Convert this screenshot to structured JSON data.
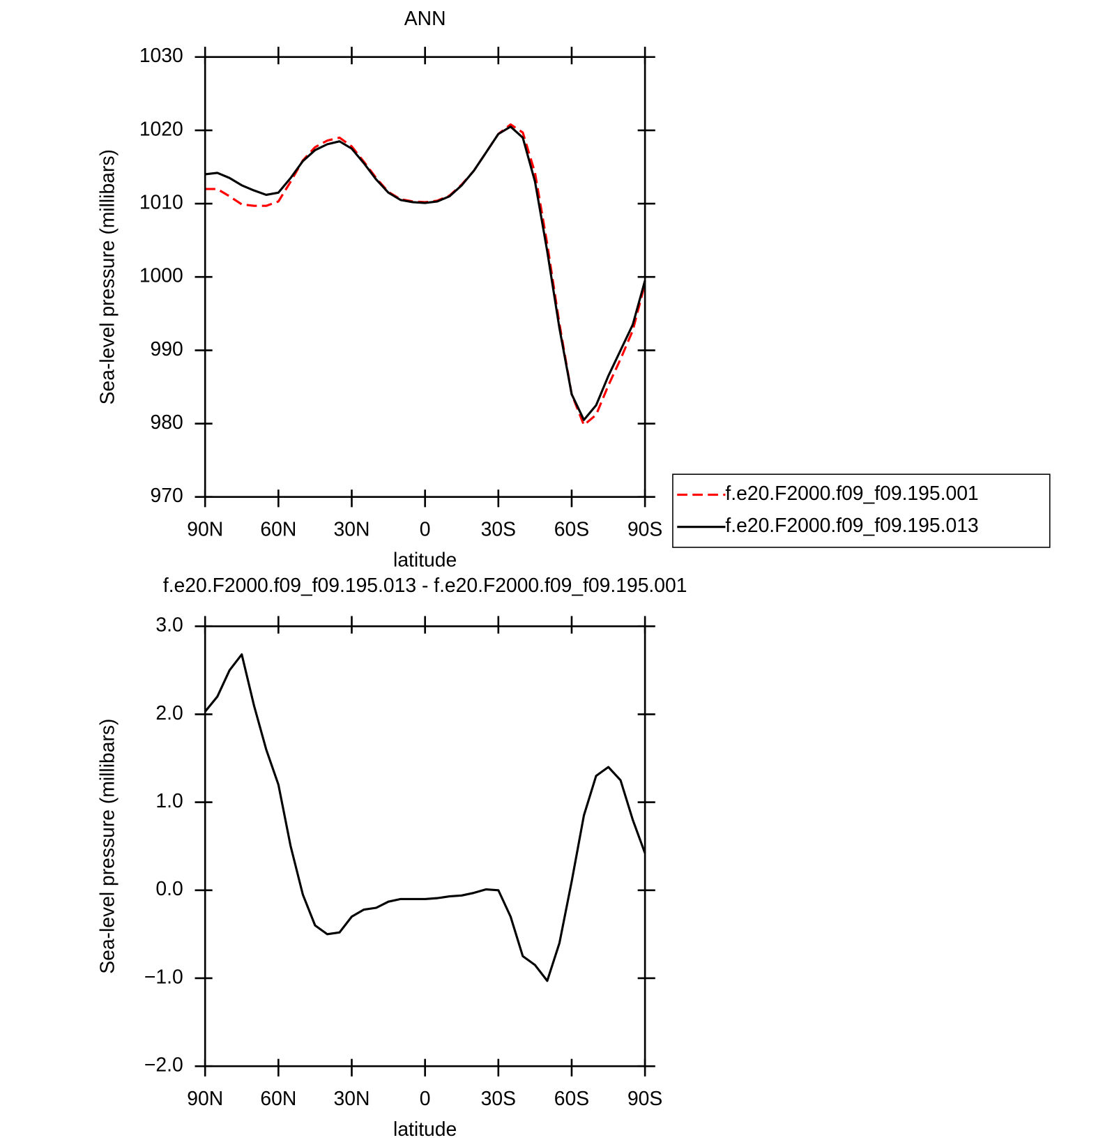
{
  "chart_data": [
    {
      "type": "line",
      "title": "ANN",
      "xlabel": "latitude",
      "ylabel": "Sea-level pressure (millibars)",
      "x": [
        90,
        85,
        80,
        75,
        70,
        65,
        60,
        55,
        50,
        45,
        40,
        35,
        30,
        25,
        20,
        15,
        10,
        5,
        0,
        -5,
        -10,
        -15,
        -20,
        -25,
        -30,
        -35,
        -40,
        -45,
        -50,
        -55,
        -60,
        -65,
        -70,
        -75,
        -80,
        -85,
        -90
      ],
      "xlim": [
        90,
        -90
      ],
      "xticks": [
        {
          "value": 90,
          "label": "90N"
        },
        {
          "value": 60,
          "label": "60N"
        },
        {
          "value": 30,
          "label": "30N"
        },
        0,
        {
          "value": -30,
          "label": "30S"
        },
        {
          "value": -60,
          "label": "60S"
        },
        {
          "value": -90,
          "label": "90S"
        }
      ],
      "ylim": [
        970,
        1030
      ],
      "yticks": [
        970,
        980,
        990,
        1000,
        1010,
        1020,
        1030
      ],
      "legend": "right",
      "series": [
        {
          "name": "f.e20.F2000.f09_f09.195.001",
          "color": "#ff0000",
          "dash": true,
          "values": [
            1012.0,
            1012.0,
            1011.0,
            1009.9,
            1009.7,
            1009.7,
            1010.3,
            1013.0,
            1015.9,
            1017.7,
            1018.6,
            1019.0,
            1017.8,
            1015.7,
            1013.5,
            1011.6,
            1010.6,
            1010.3,
            1010.2,
            1010.4,
            1011.1,
            1012.6,
            1014.5,
            1017.0,
            1019.5,
            1020.8,
            1019.7,
            1014.2,
            1004.5,
            993.6,
            984.0,
            979.8,
            981.2,
            985.2,
            988.8,
            992.7,
            999.1
          ]
        },
        {
          "name": "f.e20.F2000.f09_f09.195.013",
          "color": "#000000",
          "dash": false,
          "values": [
            1014.0,
            1014.2,
            1013.5,
            1012.5,
            1011.8,
            1011.2,
            1011.5,
            1013.5,
            1015.8,
            1017.3,
            1018.1,
            1018.5,
            1017.5,
            1015.5,
            1013.3,
            1011.5,
            1010.5,
            1010.2,
            1010.1,
            1010.3,
            1011.0,
            1012.5,
            1014.5,
            1017.0,
            1019.5,
            1020.5,
            1019.0,
            1013.0,
            1003.5,
            993.0,
            984.0,
            980.5,
            982.5,
            986.5,
            990.0,
            993.5,
            999.5
          ]
        }
      ]
    },
    {
      "type": "line",
      "title": "f.e20.F2000.f09_f09.195.013 - f.e20.F2000.f09_f09.195.001",
      "xlabel": "latitude",
      "ylabel": "Sea-level pressure (millibars)",
      "x": [
        90,
        85,
        80,
        75,
        70,
        65,
        60,
        55,
        50,
        45,
        40,
        35,
        30,
        25,
        20,
        15,
        10,
        5,
        0,
        -5,
        -10,
        -15,
        -20,
        -25,
        -30,
        -35,
        -40,
        -45,
        -50,
        -55,
        -60,
        -65,
        -70,
        -75,
        -80,
        -85,
        -90
      ],
      "xlim": [
        90,
        -90
      ],
      "xticks": [
        {
          "value": 90,
          "label": "90N"
        },
        {
          "value": 60,
          "label": "60N"
        },
        {
          "value": 30,
          "label": "30N"
        },
        0,
        {
          "value": -30,
          "label": "30S"
        },
        {
          "value": -60,
          "label": "60S"
        },
        {
          "value": -90,
          "label": "90S"
        }
      ],
      "ylim": [
        -2,
        3
      ],
      "yticks": [
        {
          "value": -2,
          "label": "−2.0"
        },
        {
          "value": -1,
          "label": "−1.0"
        },
        {
          "value": 0,
          "label": "0.0"
        },
        {
          "value": 1,
          "label": "1.0"
        },
        {
          "value": 2,
          "label": "2.0"
        },
        {
          "value": 3,
          "label": "3.0"
        }
      ],
      "series": [
        {
          "color": "#000000",
          "dash": false,
          "values": [
            2.03,
            2.2,
            2.5,
            2.68,
            2.1,
            1.6,
            1.2,
            0.5,
            -0.05,
            -0.4,
            -0.5,
            -0.48,
            -0.3,
            -0.22,
            -0.2,
            -0.13,
            -0.1,
            -0.1,
            -0.1,
            -0.09,
            -0.07,
            -0.06,
            -0.03,
            0.01,
            0.0,
            -0.3,
            -0.75,
            -0.85,
            -1.03,
            -0.6,
            0.1,
            0.85,
            1.3,
            1.4,
            1.25,
            0.8,
            0.42
          ]
        }
      ]
    }
  ]
}
